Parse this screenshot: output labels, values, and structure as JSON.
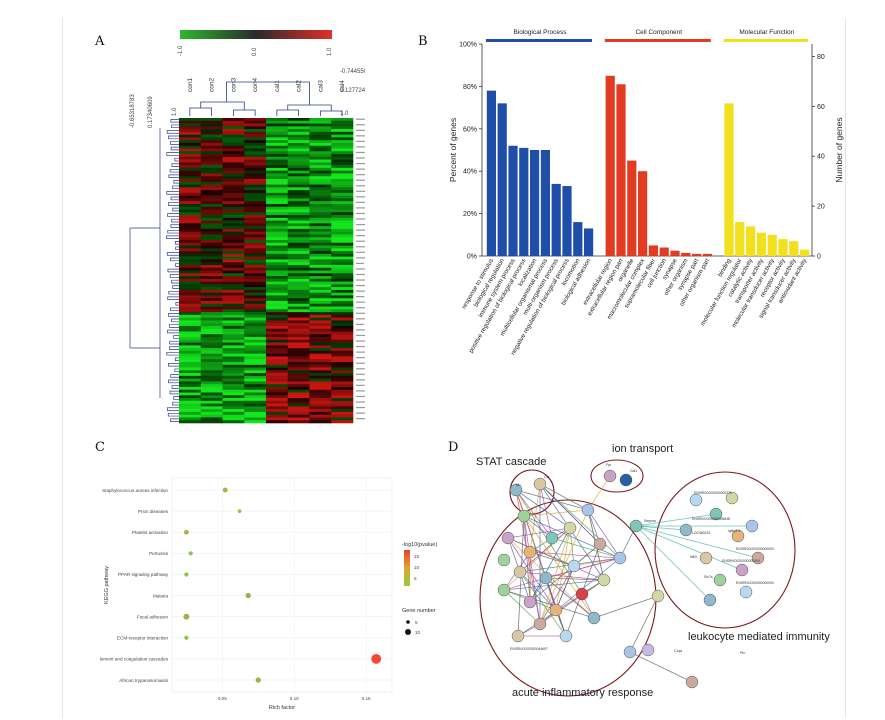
{
  "panels": {
    "a": "A",
    "b": "B",
    "c": "C",
    "d": "D"
  },
  "chart_data": [
    {
      "type": "heatmap",
      "columns": [
        "con1",
        "con2",
        "con3",
        "con4",
        "cal1",
        "cal2",
        "cal3",
        "cal4"
      ],
      "colorbar_ticks": [
        "-1.0",
        "0.0",
        "1.0"
      ],
      "column_tree_labels": [
        "-0.74455047",
        "0.12772477",
        "1.0"
      ],
      "row_tree_labels": [
        "-0.65318783",
        "0.17340609",
        "1.0"
      ],
      "colors": {
        "low": "#2db82d",
        "mid": "#000000",
        "high": "#e0302a"
      }
    },
    {
      "type": "bar",
      "yleft_label": "Percent of genes",
      "yleft_ticks": [
        "0%",
        "20%",
        "40%",
        "60%",
        "80%",
        "100%"
      ],
      "yright_label": "Number of genes",
      "yright_ticks": [
        "0",
        "20",
        "40",
        "60",
        "80"
      ],
      "ylim": [
        0,
        100
      ],
      "groups": [
        {
          "name": "Biological Process",
          "color": "#1f4fa8",
          "categories": [
            "response to stimulus",
            "biological regulation",
            "immune system process",
            "positive regulation of biological process",
            "localization",
            "multicellular organismal process",
            "multi-organism process",
            "negative regulation of biological process",
            "locomotion",
            "biological adhesion"
          ],
          "values": [
            78,
            72,
            52,
            51,
            50,
            50,
            34,
            33,
            16,
            13
          ]
        },
        {
          "name": "Cell Component",
          "color": "#e33a22",
          "categories": [
            "extracellular region",
            "extracellular region part",
            "organelle",
            "macromolecular complex",
            "supramolecular fiber",
            "cell junction",
            "synapse",
            "other organism",
            "synapse part",
            "other organism part"
          ],
          "values": [
            85,
            81,
            45,
            40,
            5,
            4,
            2.5,
            1.5,
            1,
            1
          ]
        },
        {
          "name": "Molecular Function",
          "color": "#f2e01e",
          "categories": [
            "binding",
            "molecular function regulator",
            "catalytic activity",
            "transporter activity",
            "molecular transducer activity",
            "receptor activity",
            "signal transducer activity",
            "antioxidant activity"
          ],
          "values": [
            72,
            16,
            14,
            11,
            10,
            8,
            7,
            3
          ]
        }
      ]
    },
    {
      "type": "scatter",
      "ylabel": "KEGG pathway",
      "xlabel": "Rich factor",
      "x_ticks": [
        0.05,
        0.1,
        0.15
      ],
      "xlim": [
        0.015,
        0.168
      ],
      "legend_color_title": "-log10(pvalue)",
      "legend_color_ticks": [
        "15",
        "10",
        "5"
      ],
      "legend_size_title": "Gene number",
      "legend_size_ticks": [
        "5",
        "10"
      ],
      "categories": [
        "Staphylococcus aureus infection",
        "Prion diseases",
        "Platelet activation",
        "Pertussis",
        "PPAR signaling pathway",
        "Malaria",
        "Focal adhesion",
        "ECM-receptor interaction",
        "Complement and coagulation cascades",
        "African trypanosomiasis"
      ],
      "points": [
        {
          "x": 0.052,
          "size": 5,
          "p": 3
        },
        {
          "x": 0.062,
          "size": 3,
          "p": 2
        },
        {
          "x": 0.025,
          "size": 5,
          "p": 3
        },
        {
          "x": 0.028,
          "size": 4,
          "p": 2
        },
        {
          "x": 0.025,
          "size": 4,
          "p": 2
        },
        {
          "x": 0.068,
          "size": 6,
          "p": 4
        },
        {
          "x": 0.025,
          "size": 7,
          "p": 4
        },
        {
          "x": 0.025,
          "size": 4,
          "p": 2
        },
        {
          "x": 0.157,
          "size": 14,
          "p": 17
        },
        {
          "x": 0.075,
          "size": 6,
          "p": 4
        }
      ]
    },
    {
      "type": "network",
      "cluster_labels": [
        "STAT cascade",
        "ion transport",
        "leukocyte mediated immunity",
        "acute inflammatory response"
      ],
      "node_labels": [
        "Fpr",
        "Cat1",
        "Cfh",
        "Il1r",
        "Serpina",
        "ENSRNOG00000000271",
        "ENSRNOG00000005848",
        "LOC680223",
        "Igfbp7-4",
        "Nfil3",
        "ENSRNOG00000000000",
        "ENSRNOG00000000000",
        "Slc7a",
        "ENSRNOG00000000000",
        "Ptx",
        "C1qa",
        "ENSRNOG00000044697"
      ]
    }
  ]
}
